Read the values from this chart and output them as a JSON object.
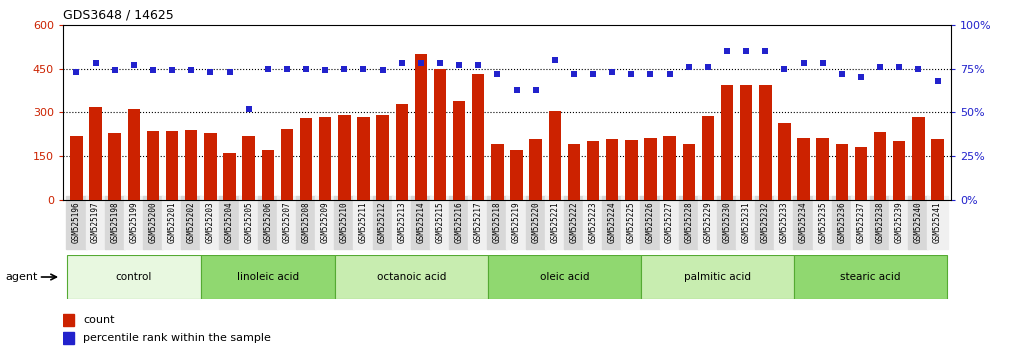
{
  "title": "GDS3648 / 14625",
  "samples": [
    "GSM525196",
    "GSM525197",
    "GSM525198",
    "GSM525199",
    "GSM525200",
    "GSM525201",
    "GSM525202",
    "GSM525203",
    "GSM525204",
    "GSM525205",
    "GSM525206",
    "GSM525207",
    "GSM525208",
    "GSM525209",
    "GSM525210",
    "GSM525211",
    "GSM525212",
    "GSM525213",
    "GSM525214",
    "GSM525215",
    "GSM525216",
    "GSM525217",
    "GSM525218",
    "GSM525219",
    "GSM525220",
    "GSM525221",
    "GSM525222",
    "GSM525223",
    "GSM525224",
    "GSM525225",
    "GSM525226",
    "GSM525227",
    "GSM525228",
    "GSM525229",
    "GSM525230",
    "GSM525231",
    "GSM525232",
    "GSM525233",
    "GSM525234",
    "GSM525235",
    "GSM525236",
    "GSM525237",
    "GSM525238",
    "GSM525239",
    "GSM525240",
    "GSM525241"
  ],
  "bar_values": [
    220,
    320,
    230,
    310,
    235,
    235,
    240,
    228,
    162,
    218,
    172,
    242,
    280,
    285,
    292,
    285,
    292,
    328,
    500,
    450,
    340,
    432,
    192,
    172,
    208,
    305,
    192,
    202,
    210,
    204,
    214,
    218,
    192,
    288,
    395,
    395,
    395,
    262,
    212,
    212,
    192,
    182,
    234,
    202,
    284,
    208
  ],
  "percentile_values": [
    73,
    78,
    74,
    77,
    74,
    74,
    74,
    73,
    73,
    52,
    75,
    75,
    75,
    74,
    75,
    75,
    74,
    78,
    78,
    78,
    77,
    77,
    72,
    63,
    63,
    80,
    72,
    72,
    73,
    72,
    72,
    72,
    76,
    76,
    85,
    85,
    85,
    75,
    78,
    78,
    72,
    70,
    76,
    76,
    75,
    68
  ],
  "groups": [
    {
      "label": "control",
      "start": 0,
      "end": 7
    },
    {
      "label": "linoleic acid",
      "start": 7,
      "end": 14
    },
    {
      "label": "octanoic acid",
      "start": 14,
      "end": 22
    },
    {
      "label": "oleic acid",
      "start": 22,
      "end": 30
    },
    {
      "label": "palmitic acid",
      "start": 30,
      "end": 38
    },
    {
      "label": "stearic acid",
      "start": 38,
      "end": 46
    }
  ],
  "group_fill_colors": [
    "#e8f8e0",
    "#c8edb0",
    "#90d870",
    "#c8edb0",
    "#90d870",
    "#c8edb0"
  ],
  "bar_color": "#cc2200",
  "dot_color": "#2222cc",
  "left_yticks": [
    0,
    150,
    300,
    450,
    600
  ],
  "right_yticks": [
    0,
    25,
    50,
    75,
    100
  ],
  "hline_values": [
    150,
    300,
    450
  ],
  "group_border_color": "#55aa33",
  "agent_label": "agent",
  "legend_count_label": "count",
  "legend_percentile_label": "percentile rank within the sample",
  "tick_bg_even": "#d8d8d8",
  "tick_bg_odd": "#f0f0f0"
}
